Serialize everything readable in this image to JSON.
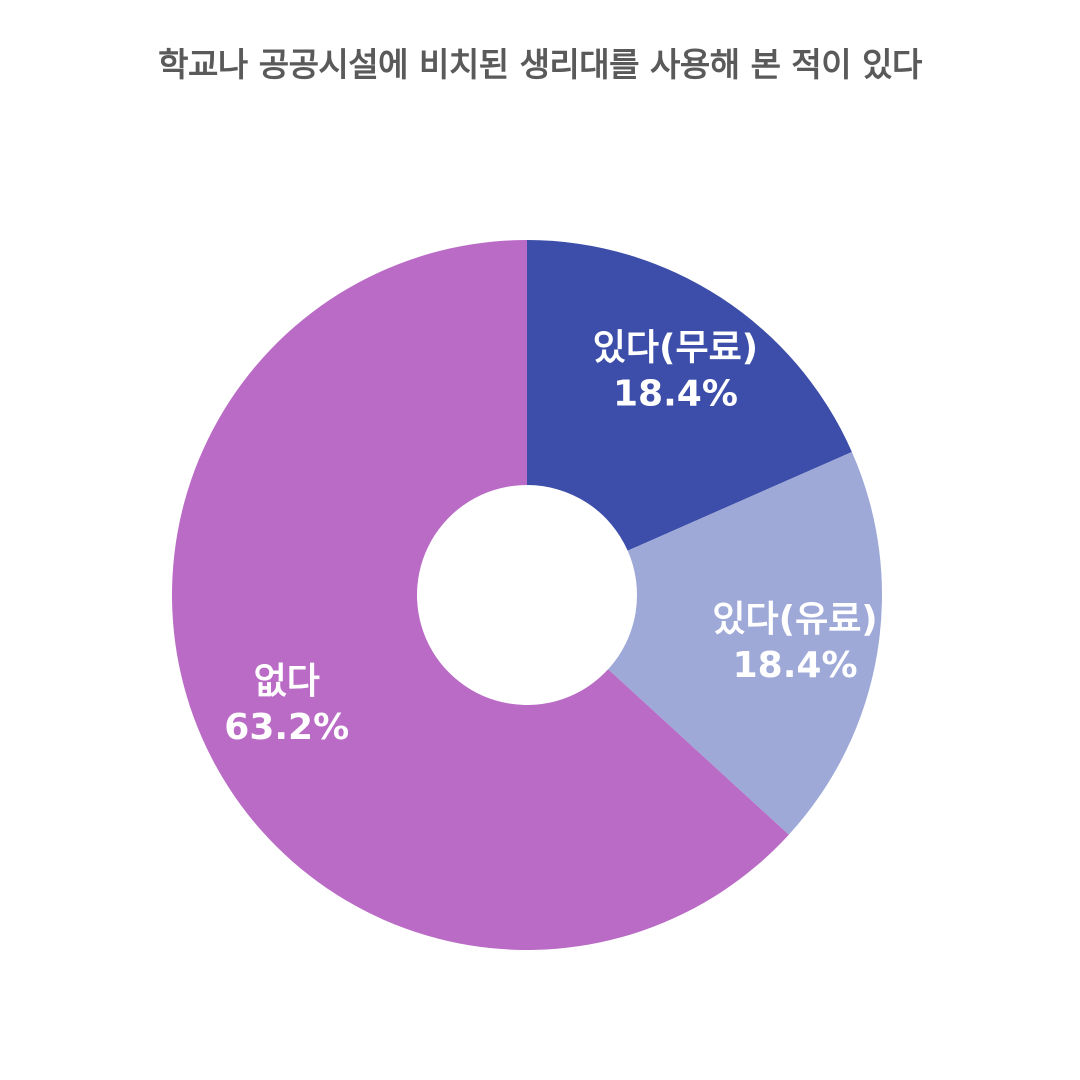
{
  "chart_data": {
    "type": "pie",
    "variant": "donut",
    "title": "학교나 공공시설에 비치된 생리대를 사용해 본 적이 있다",
    "slices": [
      {
        "label": "있다(무료)",
        "value": 18.4,
        "value_label": "18.4%",
        "color": "#3c4ea9"
      },
      {
        "label": "있다(유료)",
        "value": 18.4,
        "value_label": "18.4%",
        "color": "#9ea9d8"
      },
      {
        "label": "없다",
        "value": 63.2,
        "value_label": "63.2%",
        "color": "#b96bc5"
      }
    ],
    "start_angle_deg": 0,
    "direction": "clockwise",
    "legend": "none",
    "labels_inside": true
  }
}
